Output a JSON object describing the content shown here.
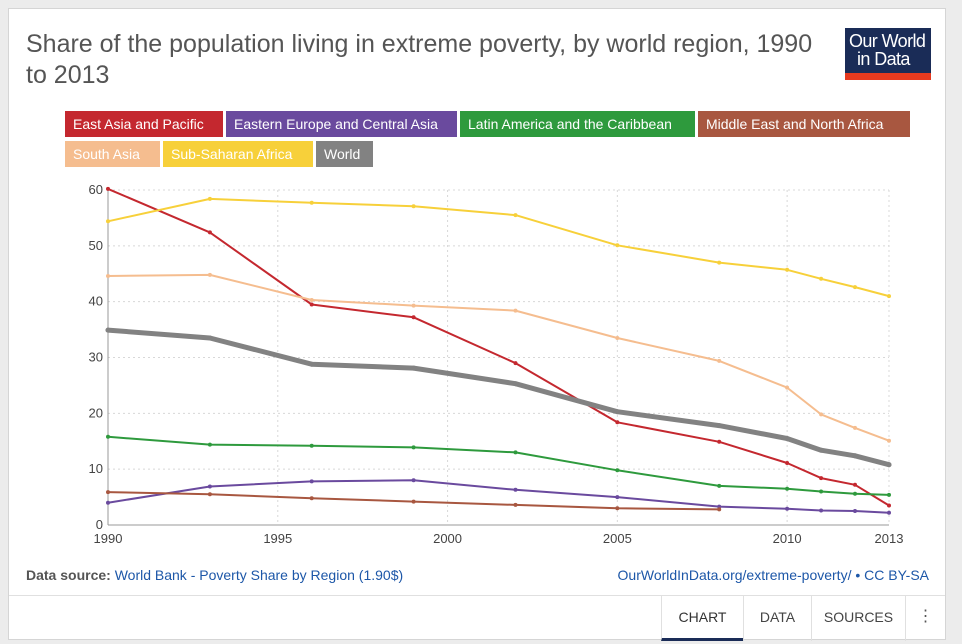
{
  "title": "Share of the population living in extreme poverty, by world region, 1990 to 2013",
  "logo": {
    "line1": "Our World",
    "line2": "in Data"
  },
  "source": {
    "label": "Data source:",
    "text": "World Bank - Poverty Share by Region (1.90$)",
    "license_link": "OurWorldInData.org/extreme-poverty/",
    "license_sep": " • ",
    "license_cc": "CC BY-SA"
  },
  "tabs": {
    "chart": "CHART",
    "data": "DATA",
    "sources": "SOURCES",
    "more": "⋮"
  },
  "chart_data": {
    "type": "line",
    "title": "Share of the population living in extreme poverty, by world region, 1990 to 2013",
    "xlim": [
      1990,
      2013
    ],
    "ylim": [
      0,
      60
    ],
    "x_ticks": [
      "1990",
      "1995",
      "2000",
      "2005",
      "2010",
      "2013"
    ],
    "y_ticks": [
      "0",
      "10",
      "20",
      "30",
      "40",
      "50",
      "60"
    ],
    "grid": true,
    "legend_position": "top",
    "series": [
      {
        "name": "East Asia and Pacific",
        "color": "#c4282f",
        "points": [
          [
            1990,
            60.2
          ],
          [
            1993,
            52.4
          ],
          [
            1996,
            39.5
          ],
          [
            1999,
            37.2
          ],
          [
            2002,
            29.0
          ],
          [
            2005,
            18.4
          ],
          [
            2008,
            14.9
          ],
          [
            2010,
            11.1
          ],
          [
            2011,
            8.4
          ],
          [
            2012,
            7.2
          ],
          [
            2013,
            3.5
          ]
        ]
      },
      {
        "name": "Eastern Europe and Central Asia",
        "color": "#6a4a9e",
        "points": [
          [
            1990,
            4.0
          ],
          [
            1993,
            6.9
          ],
          [
            1996,
            7.8
          ],
          [
            1999,
            8.0
          ],
          [
            2002,
            6.3
          ],
          [
            2005,
            5.0
          ],
          [
            2008,
            3.3
          ],
          [
            2010,
            2.9
          ],
          [
            2011,
            2.6
          ],
          [
            2012,
            2.5
          ],
          [
            2013,
            2.2
          ]
        ]
      },
      {
        "name": "Latin America and the Caribbean",
        "color": "#2e9a3d",
        "points": [
          [
            1990,
            15.8
          ],
          [
            1993,
            14.4
          ],
          [
            1996,
            14.2
          ],
          [
            1999,
            13.9
          ],
          [
            2002,
            13.0
          ],
          [
            2005,
            9.8
          ],
          [
            2008,
            7.0
          ],
          [
            2010,
            6.5
          ],
          [
            2011,
            6.0
          ],
          [
            2012,
            5.6
          ],
          [
            2013,
            5.4
          ]
        ]
      },
      {
        "name": "Middle East and North Africa",
        "color": "#a85740",
        "points": [
          [
            1990,
            5.9
          ],
          [
            1993,
            5.5
          ],
          [
            1996,
            4.8
          ],
          [
            1999,
            4.2
          ],
          [
            2002,
            3.6
          ],
          [
            2005,
            3.0
          ],
          [
            2008,
            2.8
          ]
        ]
      },
      {
        "name": "South Asia",
        "color": "#f5bd8f",
        "points": [
          [
            1990,
            44.6
          ],
          [
            1993,
            44.8
          ],
          [
            1996,
            40.3
          ],
          [
            1999,
            39.3
          ],
          [
            2002,
            38.4
          ],
          [
            2005,
            33.5
          ],
          [
            2008,
            29.4
          ],
          [
            2010,
            24.6
          ],
          [
            2011,
            19.8
          ],
          [
            2012,
            17.4
          ],
          [
            2013,
            15.1
          ]
        ]
      },
      {
        "name": "Sub-Saharan Africa",
        "color": "#f7d03a",
        "points": [
          [
            1990,
            54.4
          ],
          [
            1993,
            58.4
          ],
          [
            1996,
            57.7
          ],
          [
            1999,
            57.1
          ],
          [
            2002,
            55.5
          ],
          [
            2005,
            50.1
          ],
          [
            2008,
            47.0
          ],
          [
            2010,
            45.7
          ],
          [
            2011,
            44.1
          ],
          [
            2012,
            42.6
          ],
          [
            2013,
            41.0
          ]
        ]
      },
      {
        "name": "World",
        "color": "#828282",
        "width": 5,
        "points": [
          [
            1990,
            34.9
          ],
          [
            1993,
            33.5
          ],
          [
            1996,
            28.8
          ],
          [
            1999,
            28.1
          ],
          [
            2002,
            25.3
          ],
          [
            2005,
            20.3
          ],
          [
            2008,
            17.8
          ],
          [
            2010,
            15.5
          ],
          [
            2011,
            13.4
          ],
          [
            2012,
            12.4
          ],
          [
            2013,
            10.8
          ]
        ]
      }
    ]
  }
}
